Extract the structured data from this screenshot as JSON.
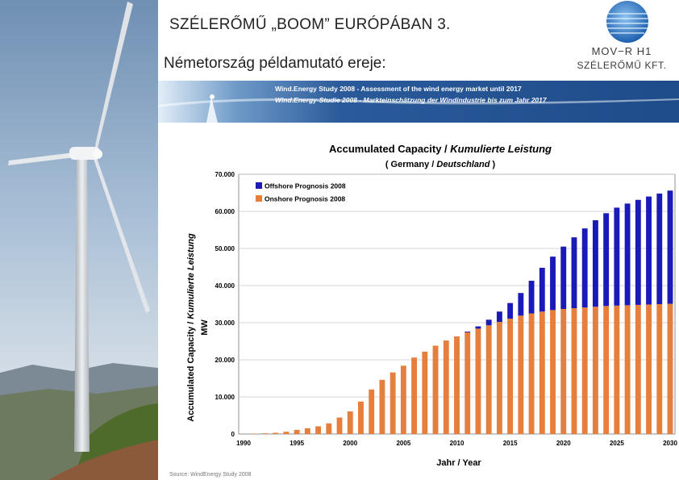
{
  "slide": {
    "title": "SZÉLERŐMŰ „BOOM” EURÓPÁBAN 3.",
    "subtitle": "Németország példamutató ereje:"
  },
  "logo": {
    "name": "MOV−R H1",
    "company": "SZÉLERŐMŰ KFT."
  },
  "banner": {
    "line1": "Wind.Energy Study 2008 - Assessment of the wind energy market until 2017",
    "line2": "Wind.Energy-Studie 2008 - Markteinschätzung der Windindustrie bis zum Jahr 2017"
  },
  "source": "Source: WindEnergy Study 2008",
  "chart_data": {
    "type": "bar",
    "stacked": true,
    "title_en": "Accumulated Capacity / ",
    "title_de": "Kumulierte Leistung",
    "subtitle_en": "( Germany / ",
    "subtitle_de": "Deutschland",
    "subtitle_close": " )",
    "ylabel_en": "Accumulated Capacity / ",
    "ylabel_de": "Kumulierte Leistung",
    "ylabel_unit": "MW",
    "xlabel": "Jahr / Year",
    "ylim": [
      0,
      70000
    ],
    "yticks": [
      0,
      10000,
      20000,
      30000,
      40000,
      50000,
      60000,
      70000
    ],
    "ytick_labels": [
      "0",
      "10.000",
      "20.000",
      "30.000",
      "40.000",
      "50.000",
      "60.000",
      "70.000"
    ],
    "xticks": [
      1990,
      1995,
      2000,
      2005,
      2010,
      2015,
      2020,
      2025,
      2030
    ],
    "grid": true,
    "legend_position": "top-left",
    "colors": {
      "offshore": "#1a1ab8",
      "onshore": "#e67e3c"
    },
    "categories": [
      1990,
      1991,
      1992,
      1993,
      1994,
      1995,
      1996,
      1997,
      1998,
      1999,
      2000,
      2001,
      2002,
      2003,
      2004,
      2005,
      2006,
      2007,
      2008,
      2009,
      2010,
      2011,
      2012,
      2013,
      2014,
      2015,
      2016,
      2017,
      2018,
      2019,
      2020,
      2021,
      2022,
      2023,
      2024,
      2025,
      2026,
      2027,
      2028,
      2029,
      2030
    ],
    "series": [
      {
        "name": "Onshore Prognosis 2008",
        "values": [
          60,
          110,
          180,
          330,
          620,
          1120,
          1550,
          2080,
          2870,
          4440,
          6100,
          8750,
          12000,
          14600,
          16600,
          18400,
          20600,
          22200,
          23800,
          25200,
          26300,
          27400,
          28400,
          29300,
          30200,
          31100,
          31900,
          32500,
          33000,
          33400,
          33700,
          33900,
          34100,
          34300,
          34500,
          34600,
          34700,
          34800,
          34900,
          35000,
          35100
        ]
      },
      {
        "name": "Offshore Prognosis 2008",
        "values": [
          0,
          0,
          0,
          0,
          0,
          0,
          0,
          0,
          0,
          0,
          0,
          0,
          0,
          0,
          0,
          0,
          0,
          0,
          0,
          0,
          0,
          200,
          600,
          1500,
          2800,
          4200,
          6100,
          8800,
          11800,
          14400,
          16800,
          19100,
          21300,
          23300,
          25000,
          26400,
          27400,
          28300,
          29100,
          29800,
          30500
        ]
      }
    ]
  }
}
